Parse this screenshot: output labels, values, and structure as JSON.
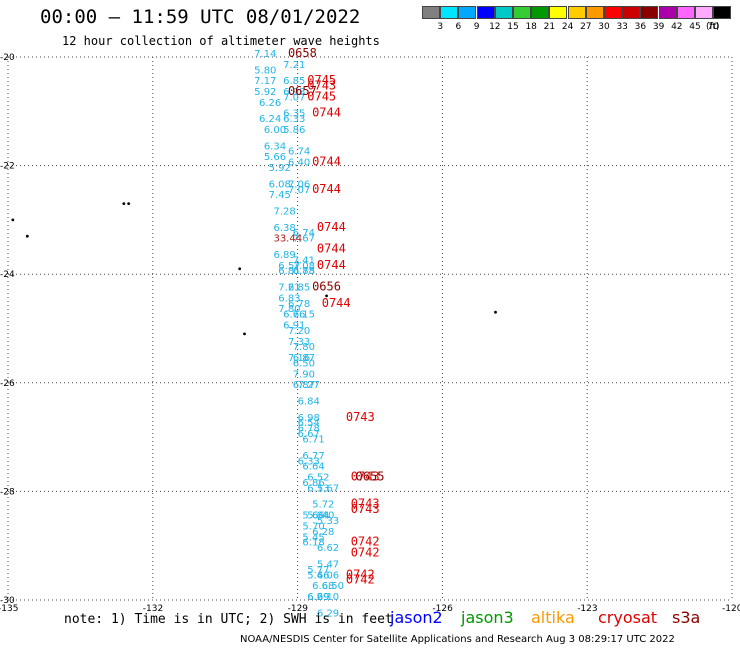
{
  "header": {
    "title": "00:00 – 11:59 UTC 08/01/2022",
    "subtitle": "12 hour collection of altimeter wave heights"
  },
  "legend": {
    "colors": [
      "#808080",
      "#00e5ff",
      "#00a8ff",
      "#0000ff",
      "#00c8c8",
      "#33cc33",
      "#009900",
      "#ffff00",
      "#ffcc00",
      "#ff9900",
      "#ff0000",
      "#cc0000",
      "#880000",
      "#aa00aa",
      "#ff66ff",
      "#ffaaff",
      "#000000"
    ],
    "labels": [
      "3",
      "6",
      "9",
      "12",
      "15",
      "18",
      "21",
      "24",
      "27",
      "30",
      "33",
      "36",
      "39",
      "42",
      "45",
      "70"
    ],
    "unit": "(ft)"
  },
  "axes": {
    "lat_labels": [
      "-20",
      "-22",
      "-24",
      "-26",
      "-28",
      "-30"
    ],
    "lon_labels": [
      "-135",
      "-132",
      "-129",
      "-126",
      "-123",
      "-120"
    ]
  },
  "map_data": {
    "wave_heights": [
      {
        "lon": -129.9,
        "lat": -20.0,
        "v": "7.14",
        "c": "#1fb5e8"
      },
      {
        "lon": -129.9,
        "lat": -20.3,
        "v": "5.80",
        "c": "#1fb5e8"
      },
      {
        "lon": -129.3,
        "lat": -20.2,
        "v": "7.21",
        "c": "#1fb5e8"
      },
      {
        "lon": -129.9,
        "lat": -20.5,
        "v": "7.17",
        "c": "#1fb5e8"
      },
      {
        "lon": -129.3,
        "lat": -20.5,
        "v": "6.85",
        "c": "#1fb5e8"
      },
      {
        "lon": -129.9,
        "lat": -20.7,
        "v": "5.92",
        "c": "#1fb5e8"
      },
      {
        "lon": -129.3,
        "lat": -20.7,
        "v": "6.98",
        "c": "#1fb5e8"
      },
      {
        "lon": -129.3,
        "lat": -20.8,
        "v": "7.07",
        "c": "#1fb5e8"
      },
      {
        "lon": -129.8,
        "lat": -20.9,
        "v": "6.26",
        "c": "#1fb5e8"
      },
      {
        "lon": -129.8,
        "lat": -21.2,
        "v": "6.24",
        "c": "#1fb5e8"
      },
      {
        "lon": -129.3,
        "lat": -21.1,
        "v": "6.35",
        "c": "#1fb5e8"
      },
      {
        "lon": -129.3,
        "lat": -21.2,
        "v": "6.33",
        "c": "#1fb5e8"
      },
      {
        "lon": -129.7,
        "lat": -21.4,
        "v": "6.00",
        "c": "#1fb5e8"
      },
      {
        "lon": -129.3,
        "lat": -21.4,
        "v": "5.86",
        "c": "#1fb5e8"
      },
      {
        "lon": -129.7,
        "lat": -21.7,
        "v": "6.34",
        "c": "#1fb5e8"
      },
      {
        "lon": -129.2,
        "lat": -21.8,
        "v": "6.74",
        "c": "#1fb5e8"
      },
      {
        "lon": -129.7,
        "lat": -21.9,
        "v": "5.66",
        "c": "#1fb5e8"
      },
      {
        "lon": -129.2,
        "lat": -22.0,
        "v": "6.40",
        "c": "#1fb5e8"
      },
      {
        "lon": -129.6,
        "lat": -22.1,
        "v": "5.92",
        "c": "#1fb5e8"
      },
      {
        "lon": -129.6,
        "lat": -22.4,
        "v": "6.08",
        "c": "#1fb5e8"
      },
      {
        "lon": -129.2,
        "lat": -22.4,
        "v": "7.06",
        "c": "#1fb5e8"
      },
      {
        "lon": -129.6,
        "lat": -22.6,
        "v": "7.45",
        "c": "#1fb5e8"
      },
      {
        "lon": -129.2,
        "lat": -22.5,
        "v": "7.07",
        "c": "#1fb5e8"
      },
      {
        "lon": -129.5,
        "lat": -22.9,
        "v": "7.28",
        "c": "#1fb5e8"
      },
      {
        "lon": -129.5,
        "lat": -23.2,
        "v": "6.38",
        "c": "#1fb5e8"
      },
      {
        "lon": -129.1,
        "lat": -23.3,
        "v": "6.74",
        "c": "#1fb5e8"
      },
      {
        "lon": -129.1,
        "lat": -23.4,
        "v": "7.67",
        "c": "#1fb5e8"
      },
      {
        "lon": -129.5,
        "lat": -23.4,
        "v": "33.44",
        "c": "#b31a1a"
      },
      {
        "lon": -129.5,
        "lat": -23.7,
        "v": "6.89",
        "c": "#1fb5e8"
      },
      {
        "lon": -129.1,
        "lat": -23.8,
        "v": "7.41",
        "c": "#1fb5e8"
      },
      {
        "lon": -129.4,
        "lat": -23.9,
        "v": "6.57",
        "c": "#1fb5e8"
      },
      {
        "lon": -129.1,
        "lat": -23.9,
        "v": "7.08",
        "c": "#1fb5e8"
      },
      {
        "lon": -129.1,
        "lat": -24.0,
        "v": "6.88",
        "c": "#1fb5e8"
      },
      {
        "lon": -129.4,
        "lat": -24.0,
        "v": "6.81",
        "c": "#1fb5e8"
      },
      {
        "lon": -129.1,
        "lat": -24.0,
        "v": "6.75",
        "c": "#1fb5e8"
      },
      {
        "lon": -129.4,
        "lat": -24.3,
        "v": "7.21",
        "c": "#1fb5e8"
      },
      {
        "lon": -129.2,
        "lat": -24.3,
        "v": "6.85",
        "c": "#1fb5e8"
      },
      {
        "lon": -129.4,
        "lat": -24.5,
        "v": "6.83",
        "c": "#1fb5e8"
      },
      {
        "lon": -129.2,
        "lat": -24.6,
        "v": "6.78",
        "c": "#1fb5e8"
      },
      {
        "lon": -129.4,
        "lat": -24.7,
        "v": "7.80",
        "c": "#1fb5e8"
      },
      {
        "lon": -129.1,
        "lat": -24.8,
        "v": "6.15",
        "c": "#1fb5e8"
      },
      {
        "lon": -129.3,
        "lat": -24.8,
        "v": "6.76",
        "c": "#1fb5e8"
      },
      {
        "lon": -129.3,
        "lat": -25.0,
        "v": "6.91",
        "c": "#1fb5e8"
      },
      {
        "lon": -129.2,
        "lat": -25.1,
        "v": "7.20",
        "c": "#1fb5e8"
      },
      {
        "lon": -129.2,
        "lat": -25.3,
        "v": "7.33",
        "c": "#1fb5e8"
      },
      {
        "lon": -129.1,
        "lat": -25.4,
        "v": "7.80",
        "c": "#1fb5e8"
      },
      {
        "lon": -129.2,
        "lat": -25.6,
        "v": "7.16",
        "c": "#1fb5e8"
      },
      {
        "lon": -129.1,
        "lat": -25.6,
        "v": "6.87",
        "c": "#1fb5e8"
      },
      {
        "lon": -129.1,
        "lat": -25.7,
        "v": "6.50",
        "c": "#1fb5e8"
      },
      {
        "lon": -129.1,
        "lat": -25.9,
        "v": "7.90",
        "c": "#1fb5e8"
      },
      {
        "lon": -129.1,
        "lat": -26.1,
        "v": "6.87",
        "c": "#1fb5e8"
      },
      {
        "lon": -129.0,
        "lat": -26.1,
        "v": "7.27",
        "c": "#1fb5e8"
      },
      {
        "lon": -129.0,
        "lat": -26.4,
        "v": "6.84",
        "c": "#1fb5e8"
      },
      {
        "lon": -129.0,
        "lat": -26.7,
        "v": "6.98",
        "c": "#1fb5e8"
      },
      {
        "lon": -129.0,
        "lat": -26.8,
        "v": "6.54",
        "c": "#1fb5e8"
      },
      {
        "lon": -129.0,
        "lat": -26.9,
        "v": "6.78",
        "c": "#1fb5e8"
      },
      {
        "lon": -129.0,
        "lat": -27.0,
        "v": "6.67",
        "c": "#1fb5e8"
      },
      {
        "lon": -128.9,
        "lat": -27.1,
        "v": "6.71",
        "c": "#1fb5e8"
      },
      {
        "lon": -128.9,
        "lat": -27.4,
        "v": "6.77",
        "c": "#1fb5e8"
      },
      {
        "lon": -129.0,
        "lat": -27.5,
        "v": "6.33",
        "c": "#1fb5e8"
      },
      {
        "lon": -128.9,
        "lat": -27.6,
        "v": "6.64",
        "c": "#1fb5e8"
      },
      {
        "lon": -128.8,
        "lat": -27.8,
        "v": "6.52",
        "c": "#1fb5e8"
      },
      {
        "lon": -128.9,
        "lat": -27.9,
        "v": "6.86",
        "c": "#1fb5e8"
      },
      {
        "lon": -128.8,
        "lat": -28.0,
        "v": "6.13",
        "c": "#1fb5e8"
      },
      {
        "lon": -128.6,
        "lat": -28.0,
        "v": "5.67",
        "c": "#1fb5e8"
      },
      {
        "lon": -128.7,
        "lat": -28.3,
        "v": "5.72",
        "c": "#1fb5e8"
      },
      {
        "lon": -128.8,
        "lat": -28.5,
        "v": "5.84",
        "c": "#1fb5e8"
      },
      {
        "lon": -128.9,
        "lat": -28.5,
        "v": "5.66",
        "c": "#1fb5e8"
      },
      {
        "lon": -128.7,
        "lat": -28.5,
        "v": "6.40",
        "c": "#1fb5e8"
      },
      {
        "lon": -128.6,
        "lat": -28.6,
        "v": "5.33",
        "c": "#1fb5e8"
      },
      {
        "lon": -128.9,
        "lat": -28.7,
        "v": "5.70",
        "c": "#1fb5e8"
      },
      {
        "lon": -128.7,
        "lat": -28.8,
        "v": "6.28",
        "c": "#1fb5e8"
      },
      {
        "lon": -128.9,
        "lat": -28.9,
        "v": "5.45",
        "c": "#1fb5e8"
      },
      {
        "lon": -128.9,
        "lat": -29.0,
        "v": "6.18",
        "c": "#1fb5e8"
      },
      {
        "lon": -128.6,
        "lat": -29.1,
        "v": "6.62",
        "c": "#1fb5e8"
      },
      {
        "lon": -128.6,
        "lat": -29.4,
        "v": "5.47",
        "c": "#1fb5e8"
      },
      {
        "lon": -128.8,
        "lat": -29.5,
        "v": "5.77",
        "c": "#1fb5e8"
      },
      {
        "lon": -128.8,
        "lat": -29.6,
        "v": "5.46",
        "c": "#1fb5e8"
      },
      {
        "lon": -128.6,
        "lat": -29.6,
        "v": "6.06",
        "c": "#1fb5e8"
      },
      {
        "lon": -128.7,
        "lat": -29.8,
        "v": "6.68",
        "c": "#1fb5e8"
      },
      {
        "lon": -128.5,
        "lat": -29.8,
        "v": "6.50",
        "c": "#1fb5e8"
      },
      {
        "lon": -128.8,
        "lat": -30.0,
        "v": "6.09",
        "c": "#1fb5e8"
      },
      {
        "lon": -128.8,
        "lat": -30.0,
        "v": "6.29",
        "c": "#1fb5e8"
      },
      {
        "lon": -128.6,
        "lat": -30.0,
        "v": "6.10",
        "c": "#1fb5e8"
      },
      {
        "lon": -128.6,
        "lat": -30.3,
        "v": "6.29",
        "c": "#1fb5e8"
      }
    ],
    "pass_times": [
      {
        "lon": -129.2,
        "lat": -20.0,
        "t": "0658",
        "c": "#8b0000"
      },
      {
        "lon": -128.8,
        "lat": -20.5,
        "t": "0745",
        "c": "#e00000"
      },
      {
        "lon": -128.8,
        "lat": -20.6,
        "t": "0743",
        "c": "#e00000"
      },
      {
        "lon": -129.2,
        "lat": -20.7,
        "t": "0657",
        "c": "#8b0000"
      },
      {
        "lon": -128.8,
        "lat": -20.8,
        "t": "0745",
        "c": "#e00000"
      },
      {
        "lon": -128.7,
        "lat": -21.1,
        "t": "0744",
        "c": "#e00000"
      },
      {
        "lon": -128.7,
        "lat": -22.0,
        "t": "0744",
        "c": "#e00000"
      },
      {
        "lon": -128.7,
        "lat": -22.5,
        "t": "0744",
        "c": "#e00000"
      },
      {
        "lon": -128.6,
        "lat": -23.2,
        "t": "0744",
        "c": "#e00000"
      },
      {
        "lon": -128.6,
        "lat": -23.6,
        "t": "0744",
        "c": "#e00000"
      },
      {
        "lon": -128.6,
        "lat": -23.9,
        "t": "0744",
        "c": "#e00000"
      },
      {
        "lon": -128.7,
        "lat": -24.3,
        "t": "0656",
        "c": "#8b0000"
      },
      {
        "lon": -128.5,
        "lat": -24.6,
        "t": "0744",
        "c": "#e00000"
      },
      {
        "lon": -128.0,
        "lat": -26.7,
        "t": "0743",
        "c": "#e00000"
      },
      {
        "lon": -127.9,
        "lat": -27.8,
        "t": "0743",
        "c": "#e00000"
      },
      {
        "lon": -127.8,
        "lat": -27.8,
        "t": "0655",
        "c": "#8b0000"
      },
      {
        "lon": -127.9,
        "lat": -28.3,
        "t": "0743",
        "c": "#e00000"
      },
      {
        "lon": -127.9,
        "lat": -28.4,
        "t": "0743",
        "c": "#e00000"
      },
      {
        "lon": -127.9,
        "lat": -29.0,
        "t": "0742",
        "c": "#e00000"
      },
      {
        "lon": -127.9,
        "lat": -29.2,
        "t": "0742",
        "c": "#e00000"
      },
      {
        "lon": -128.0,
        "lat": -29.6,
        "t": "0742",
        "c": "#e00000"
      },
      {
        "lon": -128.0,
        "lat": -29.7,
        "t": "0742",
        "c": "#e00000"
      }
    ],
    "islands": [
      {
        "lon": -132.6,
        "lat": -22.7
      },
      {
        "lon": -132.5,
        "lat": -22.7
      },
      {
        "lon": -134.9,
        "lat": -23.0
      },
      {
        "lon": -134.6,
        "lat": -23.3
      },
      {
        "lon": -130.2,
        "lat": -23.9
      },
      {
        "lon": -128.4,
        "lat": -24.4
      },
      {
        "lon": -124.9,
        "lat": -24.7
      },
      {
        "lon": -130.1,
        "lat": -25.1
      }
    ]
  },
  "footer": {
    "note": "note: 1) Time is in UTC; 2) SWH is in feet",
    "credit": "NOAA/NESDIS Center for Satellite Applications and Research    Aug  3 08:29:17 UTC 2022",
    "satellites": [
      {
        "name": "jason2",
        "color": "#0000ff"
      },
      {
        "name": "jason3",
        "color": "#009900"
      },
      {
        "name": "altika",
        "color": "#ff9900"
      },
      {
        "name": "cryosat",
        "color": "#e00000"
      },
      {
        "name": "s3a",
        "color": "#8b0000"
      }
    ]
  }
}
